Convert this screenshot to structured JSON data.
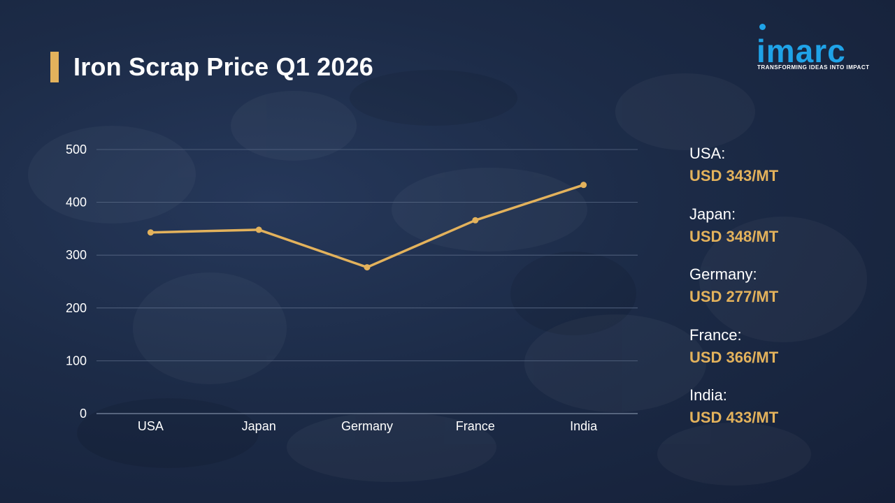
{
  "title": "Iron Scrap Price Q1 2026",
  "colors": {
    "accent": "#e3b25c",
    "line": "#e3b25c",
    "grid": "#5a6a86",
    "text": "#ffffff",
    "logo_blue": "#1fa3e8",
    "background": "#1c2b47"
  },
  "logo": {
    "text": "imarc",
    "tagline": "TRANSFORMING IDEAS INTO IMPACT"
  },
  "chart_data": {
    "type": "line",
    "title": "Iron Scrap Price Q1 2026",
    "xlabel": "",
    "ylabel": "",
    "categories": [
      "USA",
      "Japan",
      "Germany",
      "France",
      "India"
    ],
    "values": [
      343,
      348,
      277,
      366,
      433
    ],
    "ylim": [
      0,
      500
    ],
    "yticks": [
      0,
      100,
      200,
      300,
      400,
      500
    ],
    "grid": true,
    "legend": "right"
  },
  "legend_items": [
    {
      "label": "USA:",
      "value": "USD 343/MT"
    },
    {
      "label": "Japan:",
      "value": "USD 348/MT"
    },
    {
      "label": "Germany:",
      "value": "USD 277/MT"
    },
    {
      "label": "France:",
      "value": "USD 366/MT"
    },
    {
      "label": "India:",
      "value": "USD 433/MT"
    }
  ]
}
